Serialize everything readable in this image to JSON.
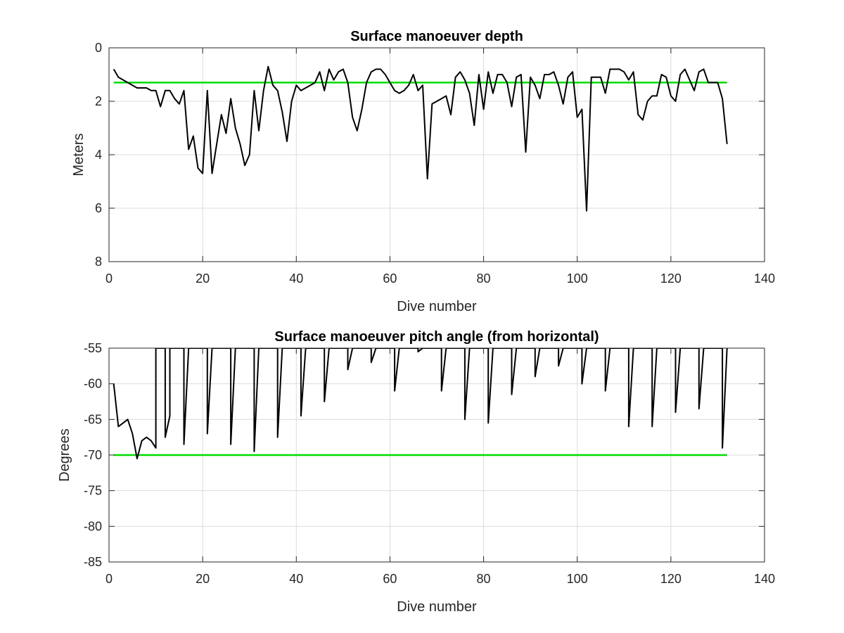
{
  "chart_data": [
    {
      "type": "line",
      "title": "Surface manoeuver depth",
      "xlabel": "Dive number",
      "ylabel": "Meters",
      "xlim": [
        0,
        140
      ],
      "ylim": [
        0,
        8
      ],
      "y_reversed": true,
      "xticks": [
        0,
        20,
        40,
        60,
        80,
        100,
        120,
        140
      ],
      "yticks": [
        0,
        2,
        4,
        6,
        8
      ],
      "grid": true,
      "colors": {
        "series": "#000000",
        "reference": "#00dd00"
      },
      "reference_line": {
        "y": 1.3,
        "x": [
          1,
          132
        ]
      },
      "series": [
        {
          "x": [
            1,
            2,
            3,
            4,
            5,
            6,
            7,
            8,
            9,
            10,
            11,
            12,
            13,
            14,
            15,
            16,
            17,
            18,
            19,
            20,
            21,
            22,
            23,
            24,
            25,
            26,
            27,
            28,
            29,
            30,
            31,
            32,
            33,
            34,
            35,
            36,
            37,
            38,
            39,
            40,
            41,
            42,
            43,
            44,
            45,
            46,
            47,
            48,
            49,
            50,
            51,
            52,
            53,
            54,
            55,
            56,
            57,
            58,
            59,
            60,
            61,
            62,
            63,
            64,
            65,
            66,
            67,
            68,
            69,
            70,
            71,
            72,
            73,
            74,
            75,
            76,
            77,
            78,
            79,
            80,
            81,
            82,
            83,
            84,
            85,
            86,
            87,
            88,
            89,
            90,
            91,
            92,
            93,
            94,
            95,
            96,
            97,
            98,
            99,
            100,
            101,
            102,
            103,
            104,
            105,
            106,
            107,
            108,
            109,
            110,
            111,
            112,
            113,
            114,
            115,
            116,
            117,
            118,
            119,
            120,
            121,
            122,
            123,
            124,
            125,
            126,
            127,
            128,
            129,
            130,
            131,
            132
          ],
          "values": [
            0.8,
            1.1,
            1.2,
            1.3,
            1.4,
            1.5,
            1.5,
            1.5,
            1.6,
            1.6,
            2.2,
            1.6,
            1.6,
            1.9,
            2.1,
            1.6,
            3.8,
            3.3,
            4.5,
            4.7,
            1.6,
            4.7,
            3.6,
            2.5,
            3.2,
            1.9,
            3.0,
            3.6,
            4.4,
            4.0,
            1.6,
            3.1,
            1.6,
            0.7,
            1.4,
            1.6,
            2.4,
            3.5,
            2.0,
            1.4,
            1.6,
            1.5,
            1.4,
            1.3,
            0.9,
            1.6,
            0.8,
            1.2,
            0.9,
            0.8,
            1.3,
            2.6,
            3.1,
            2.3,
            1.3,
            0.9,
            0.8,
            0.8,
            1.0,
            1.3,
            1.6,
            1.7,
            1.6,
            1.4,
            1.0,
            1.6,
            1.4,
            4.9,
            2.1,
            2.0,
            1.9,
            1.8,
            2.5,
            1.1,
            0.9,
            1.2,
            1.7,
            2.9,
            1.0,
            2.3,
            0.9,
            1.7,
            1.0,
            1.0,
            1.3,
            2.2,
            1.1,
            1.0,
            3.9,
            1.1,
            1.4,
            1.9,
            1.0,
            1.0,
            0.9,
            1.4,
            2.1,
            1.1,
            0.9,
            2.6,
            2.3,
            6.1,
            1.1,
            1.1,
            1.1,
            1.7,
            0.8,
            0.8,
            0.8,
            0.9,
            1.2,
            0.9,
            2.5,
            2.7,
            2.0,
            1.8,
            1.8,
            1.0,
            1.1,
            1.8,
            2.0,
            1.0,
            0.8,
            1.2,
            1.6,
            0.9,
            0.8,
            1.3,
            1.3,
            1.3,
            1.9,
            3.6
          ]
        }
      ]
    },
    {
      "type": "line",
      "title": "Surface manoeuver pitch angle (from horizontal)",
      "xlabel": "Dive number",
      "ylabel": "Degrees",
      "xlim": [
        0,
        140
      ],
      "ylim": [
        -85,
        -55
      ],
      "xticks": [
        0,
        20,
        40,
        60,
        80,
        100,
        120,
        140
      ],
      "yticks": [
        -85,
        -80,
        -75,
        -70,
        -65,
        -60,
        -55
      ],
      "grid": true,
      "colors": {
        "series": "#000000",
        "reference": "#00dd00"
      },
      "reference_line": {
        "y": -70,
        "x": [
          1,
          132
        ]
      },
      "series": [
        {
          "x": [
            1,
            2,
            3,
            4,
            5,
            6,
            7,
            8,
            9,
            10,
            10,
            11,
            11,
            12,
            12,
            13,
            13,
            14,
            15,
            16,
            16,
            17,
            20,
            21,
            21,
            22,
            25,
            26,
            26,
            27,
            30,
            31,
            31,
            32,
            35,
            36,
            36,
            37,
            40,
            41,
            41,
            42,
            45,
            46,
            46,
            47,
            50,
            51,
            51,
            52,
            55,
            56,
            56,
            57,
            60,
            61,
            61,
            62,
            65,
            66,
            66,
            67,
            70,
            71,
            71,
            72,
            75,
            76,
            76,
            77,
            80,
            81,
            81,
            82,
            85,
            86,
            86,
            87,
            90,
            91,
            91,
            92,
            95,
            96,
            96,
            97,
            100,
            101,
            101,
            102,
            105,
            106,
            106,
            107,
            110,
            111,
            111,
            112,
            115,
            116,
            116,
            117,
            120,
            121,
            121,
            122,
            125,
            126,
            126,
            127,
            130,
            131,
            131,
            132
          ],
          "values": [
            -60,
            -66,
            -65.5,
            -65,
            -67,
            -70.5,
            -68,
            -67.5,
            -68,
            -69,
            -55,
            -55,
            -55,
            -55,
            -67.5,
            -64.5,
            -55,
            -55,
            -55,
            -55,
            -68.5,
            -55,
            -55,
            -55,
            -67,
            -55,
            -55,
            -55,
            -68.5,
            -55,
            -55,
            -55,
            -69.5,
            -55,
            -55,
            -55,
            -67.5,
            -55,
            -55,
            -55,
            -64.5,
            -55,
            -55,
            -55,
            -62.5,
            -55,
            -55,
            -55,
            -58,
            -55,
            -55,
            -55,
            -57,
            -55,
            -55,
            -55,
            -61,
            -55,
            -55,
            -55,
            -55.5,
            -55,
            -55,
            -55,
            -61,
            -55,
            -55,
            -55,
            -65,
            -55,
            -55,
            -55,
            -65.5,
            -55,
            -55,
            -55,
            -61.5,
            -55,
            -55,
            -55,
            -59,
            -55,
            -55,
            -55,
            -57.5,
            -55,
            -55,
            -55,
            -60,
            -55,
            -55,
            -55,
            -61,
            -55,
            -55,
            -55,
            -66,
            -55,
            -55,
            -55,
            -66,
            -55,
            -55,
            -55,
            -64,
            -55,
            -55,
            -55,
            -63.5,
            -55,
            -55,
            -55,
            -69,
            -55
          ]
        }
      ]
    }
  ]
}
